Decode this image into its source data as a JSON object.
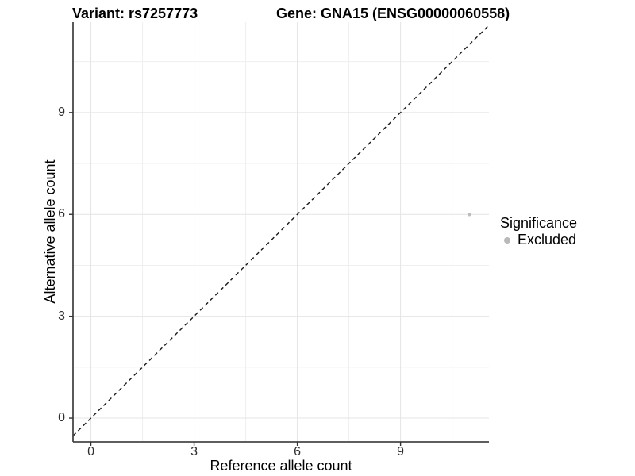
{
  "titles": {
    "variant": "Variant: rs7257773",
    "gene": "Gene: GNA15 (ENSG00000060558)"
  },
  "axes": {
    "x": {
      "label": "Reference allele count",
      "ticks": [
        0,
        3,
        6,
        9
      ]
    },
    "y": {
      "label": "Alternative allele count",
      "ticks": [
        0,
        3,
        6,
        9
      ]
    }
  },
  "legend": {
    "title": "Significance",
    "items": [
      {
        "label": "Excluded",
        "color": "#b9b9b9"
      }
    ]
  },
  "colors": {
    "background": "#ffffff",
    "grid_major": "#e4e4e4",
    "grid_minor": "#efefef",
    "axis_line": "#474747",
    "tick_mark": "#333333",
    "tick_label": "#2e2e2e",
    "title_text": "#000000",
    "point": "#bdbdbd",
    "dashed_line": "#1a1a1a"
  },
  "chart_data": {
    "type": "scatter",
    "title": "Variant: rs7257773 | Gene: GNA15 (ENSG00000060558)",
    "xlabel": "Reference allele count",
    "ylabel": "Alternative allele count",
    "x_ticks": [
      0,
      3,
      6,
      9
    ],
    "y_ticks": [
      0,
      3,
      6,
      9
    ],
    "xlim": [
      -0.52,
      11.57
    ],
    "ylim": [
      -0.7,
      11.66
    ],
    "grid": "major+minor",
    "legend_position": "right",
    "legend_title": "Significance",
    "series": [
      {
        "name": "Excluded",
        "color": "#bdbdbd",
        "points": [
          {
            "x": 11,
            "y": 6
          }
        ]
      }
    ],
    "reference_line": {
      "type": "identity",
      "slope": 1,
      "intercept": 0,
      "style": "dashed",
      "color": "#1a1a1a"
    }
  }
}
